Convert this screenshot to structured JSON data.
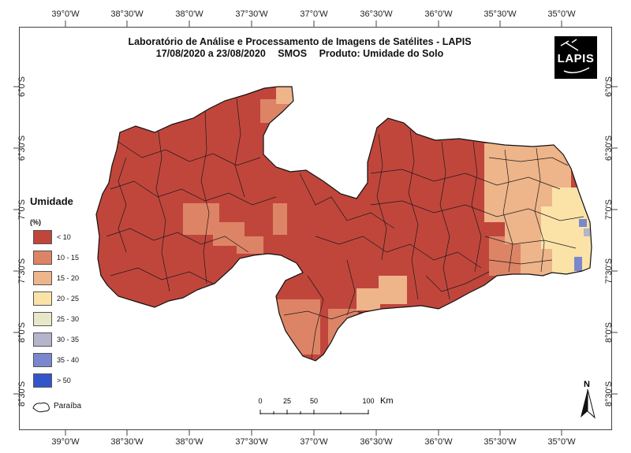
{
  "title": {
    "line1": "Laboratório de Análise e Processamento de Imagens de Satélites - LAPIS",
    "date_range": "17/08/2020  a  23/08/2020",
    "sensor": "SMOS",
    "product": "Produto: Umidade do Solo"
  },
  "logo": {
    "text": "LAPIS"
  },
  "graticule": {
    "longitudes": [
      "39°0'W",
      "38°30'W",
      "38°0'W",
      "37°30'W",
      "37°0'W",
      "36°30'W",
      "36°0'W",
      "35°30'W",
      "35°0'W"
    ],
    "latitudes": [
      "6°0'S",
      "6°30'S",
      "7°0'S",
      "7°30'S",
      "8°0'S",
      "8°30'S"
    ]
  },
  "legend": {
    "title": "Umidade",
    "unit": "(%)",
    "classes": [
      {
        "label": "< 10",
        "color": "#c0463c"
      },
      {
        "label": "10 - 15",
        "color": "#dd8466"
      },
      {
        "label": "15 - 20",
        "color": "#eeb48a"
      },
      {
        "label": "20 - 25",
        "color": "#fbe3a8"
      },
      {
        "label": "25 - 30",
        "color": "#e8e8c8"
      },
      {
        "label": "30 - 35",
        "color": "#b4b4cc"
      },
      {
        "label": "35 - 40",
        "color": "#7a87cf"
      },
      {
        "label": "> 50",
        "color": "#3355cc"
      }
    ],
    "boundary_label": "Paraíba"
  },
  "scale_bar": {
    "ticks": [
      "0",
      "25",
      "50",
      "100"
    ],
    "unit": "Km"
  },
  "north_arrow": {
    "label": "N"
  }
}
